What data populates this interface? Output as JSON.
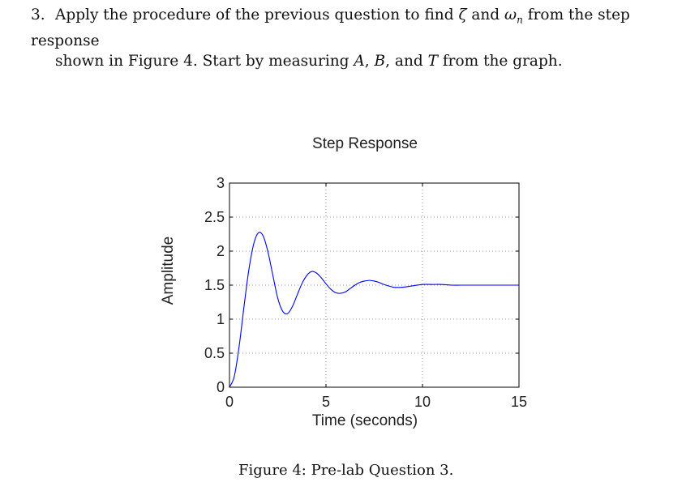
{
  "question": {
    "number": "3.",
    "line1_a": "Apply the procedure of the previous question to find ",
    "zeta": "ζ",
    "line1_b": " and ",
    "omega_n": "ωn",
    "line1_c": " from the step response",
    "line2_a": "shown in Figure 4. Start by measuring ",
    "var_a": "A",
    "comma1": ", ",
    "var_b": "B",
    "line2_b": ", and ",
    "var_t": "T",
    "line2_c": " from the graph."
  },
  "caption": "Figure 4: Pre-lab Question 3.",
  "chart_data": {
    "type": "line",
    "title": "Step Response",
    "xlabel": "Time (seconds)",
    "ylabel": "Amplitude",
    "xlim": [
      0,
      15
    ],
    "ylim": [
      0,
      3
    ],
    "xticks": [
      0,
      5,
      10,
      15
    ],
    "xtick_labels": [
      "0",
      "5",
      "10",
      "15"
    ],
    "yticks": [
      0,
      0.5,
      1,
      1.5,
      2,
      2.5,
      3
    ],
    "ytick_labels": [
      "0",
      "0.5",
      "1",
      "1.5",
      "2",
      "2.5",
      "3"
    ],
    "grid": true,
    "line_color": "#0000ff",
    "series": [
      {
        "x": [
          0,
          0.25,
          0.5,
          0.75,
          1.0,
          1.25,
          1.5,
          1.75,
          2.0,
          2.25,
          2.5,
          2.75,
          3.0,
          3.25,
          3.5,
          3.75,
          4.0,
          4.25,
          4.5,
          4.75,
          5.0,
          5.25,
          5.5,
          5.75,
          6.0,
          6.25,
          6.5,
          6.75,
          7.0,
          7.25,
          7.5,
          7.75,
          8.0,
          8.5,
          9.0,
          9.5,
          10.0,
          10.5,
          11.0,
          11.5,
          12.0,
          12.5,
          13.0,
          13.5,
          14.0,
          14.5,
          15.0
        ],
        "y": [
          0,
          0.16,
          0.6,
          1.18,
          1.72,
          2.1,
          2.27,
          2.22,
          1.98,
          1.64,
          1.31,
          1.12,
          1.08,
          1.18,
          1.35,
          1.52,
          1.64,
          1.7,
          1.68,
          1.61,
          1.52,
          1.44,
          1.39,
          1.38,
          1.4,
          1.45,
          1.5,
          1.54,
          1.56,
          1.57,
          1.56,
          1.54,
          1.51,
          1.47,
          1.47,
          1.49,
          1.51,
          1.51,
          1.51,
          1.5,
          1.5,
          1.5,
          1.5,
          1.5,
          1.5,
          1.5,
          1.5
        ]
      }
    ]
  }
}
